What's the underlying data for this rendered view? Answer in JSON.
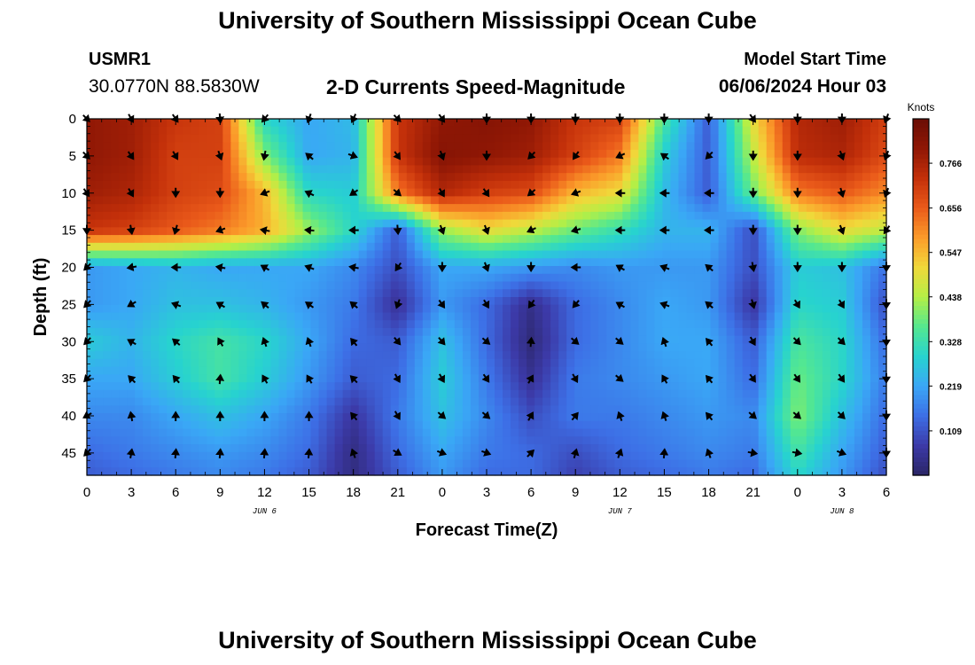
{
  "header": {
    "title": "University of Southern Mississippi Ocean Cube",
    "station_id": "USMR1",
    "station_coords": "30.0770N  88.5830W",
    "subtitle": "2-D Currents Speed-Magnitude",
    "model_start_label": "Model Start Time",
    "model_start_value": "06/06/2024 Hour 03"
  },
  "footer": {
    "title": "University of Southern Mississippi Ocean Cube"
  },
  "chart_data": {
    "type": "heatmap",
    "title": "2-D Currents Speed-Magnitude",
    "xlabel": "Forecast Time(Z)",
    "ylabel": "Depth (ft)",
    "xlim": [
      0,
      54
    ],
    "ylim": [
      48,
      0
    ],
    "x_tick_labels": [
      "0",
      "3",
      "6",
      "9",
      "12",
      "15",
      "18",
      "21",
      "0",
      "3",
      "6",
      "9",
      "12",
      "15",
      "18",
      "21",
      "0",
      "3",
      "6"
    ],
    "x_ticks_hours": [
      0,
      3,
      6,
      9,
      12,
      15,
      18,
      21,
      24,
      27,
      30,
      33,
      36,
      39,
      42,
      45,
      48,
      51,
      54
    ],
    "date_labels": [
      {
        "label": "JUN 6",
        "hour": 12
      },
      {
        "label": "JUN 7",
        "hour": 36
      },
      {
        "label": "JUN 8",
        "hour": 51
      }
    ],
    "y_ticks": [
      0,
      5,
      10,
      15,
      20,
      25,
      30,
      35,
      40,
      45
    ],
    "colorbar": {
      "label": "Knots",
      "range": [
        0.0,
        0.875
      ],
      "ticks": [
        0.109,
        0.219,
        0.328,
        0.438,
        0.547,
        0.656,
        0.766
      ],
      "colors": [
        "#2b2566",
        "#3c3aa8",
        "#3d6fe6",
        "#3aa7f6",
        "#27d3cf",
        "#55e88f",
        "#b4ef46",
        "#f1d83a",
        "#fb9b2a",
        "#ea5a1a",
        "#c3300a",
        "#8f1705",
        "#6a0d05"
      ]
    },
    "speed_knots_rows": {
      "depths_ft": [
        0,
        5,
        10,
        15,
        20,
        25,
        30,
        35,
        40,
        45,
        48
      ],
      "hours": [
        0,
        3,
        6,
        9,
        12,
        15,
        18,
        21,
        24,
        27,
        30,
        33,
        36,
        39,
        42,
        45,
        48,
        51,
        54
      ],
      "values": [
        [
          0.8,
          0.78,
          0.72,
          0.7,
          0.3,
          0.22,
          0.25,
          0.72,
          0.8,
          0.82,
          0.8,
          0.72,
          0.7,
          0.35,
          0.12,
          0.5,
          0.75,
          0.78,
          0.7
        ],
        [
          0.8,
          0.78,
          0.7,
          0.7,
          0.4,
          0.22,
          0.24,
          0.72,
          0.82,
          0.8,
          0.78,
          0.7,
          0.62,
          0.28,
          0.12,
          0.45,
          0.74,
          0.76,
          0.68
        ],
        [
          0.78,
          0.76,
          0.7,
          0.68,
          0.55,
          0.3,
          0.28,
          0.62,
          0.75,
          0.7,
          0.68,
          0.55,
          0.5,
          0.25,
          0.12,
          0.38,
          0.62,
          0.66,
          0.6
        ],
        [
          0.72,
          0.7,
          0.66,
          0.62,
          0.56,
          0.42,
          0.3,
          0.12,
          0.42,
          0.5,
          0.45,
          0.38,
          0.32,
          0.24,
          0.24,
          0.1,
          0.4,
          0.5,
          0.45
        ],
        [
          0.2,
          0.22,
          0.24,
          0.22,
          0.22,
          0.22,
          0.18,
          0.1,
          0.22,
          0.22,
          0.2,
          0.18,
          0.2,
          0.2,
          0.2,
          0.1,
          0.28,
          0.26,
          0.15
        ],
        [
          0.2,
          0.22,
          0.26,
          0.26,
          0.24,
          0.2,
          0.16,
          0.05,
          0.2,
          0.14,
          0.04,
          0.14,
          0.18,
          0.22,
          0.2,
          0.06,
          0.3,
          0.28,
          0.1
        ],
        [
          0.28,
          0.24,
          0.3,
          0.34,
          0.3,
          0.22,
          0.14,
          0.12,
          0.26,
          0.14,
          0.02,
          0.14,
          0.18,
          0.22,
          0.22,
          0.12,
          0.35,
          0.3,
          0.14
        ],
        [
          0.22,
          0.22,
          0.28,
          0.34,
          0.28,
          0.2,
          0.12,
          0.14,
          0.28,
          0.16,
          0.05,
          0.16,
          0.18,
          0.2,
          0.22,
          0.14,
          0.38,
          0.3,
          0.16
        ],
        [
          0.18,
          0.18,
          0.22,
          0.26,
          0.22,
          0.16,
          0.06,
          0.16,
          0.26,
          0.18,
          0.1,
          0.16,
          0.16,
          0.18,
          0.2,
          0.18,
          0.4,
          0.26,
          0.14
        ],
        [
          0.14,
          0.16,
          0.18,
          0.2,
          0.18,
          0.14,
          0.03,
          0.14,
          0.22,
          0.16,
          0.14,
          0.1,
          0.14,
          0.16,
          0.18,
          0.16,
          0.34,
          0.22,
          0.12
        ],
        [
          0.12,
          0.14,
          0.16,
          0.18,
          0.16,
          0.12,
          0.03,
          0.12,
          0.2,
          0.14,
          0.14,
          0.08,
          0.12,
          0.14,
          0.16,
          0.14,
          0.3,
          0.2,
          0.1
        ]
      ]
    },
    "direction_deg_rows": {
      "note": "arrow heading in screen degrees clockwise from up (0=up,180=down)",
      "depths_ft": [
        0,
        5,
        10,
        15,
        20,
        25,
        30,
        35,
        40,
        45
      ],
      "hours": [
        0,
        3,
        6,
        9,
        12,
        15,
        18,
        21,
        24,
        27,
        30,
        33,
        36,
        39,
        42,
        45,
        48,
        51,
        54
      ],
      "values": [
        [
          135,
          150,
          145,
          175,
          220,
          200,
          205,
          135,
          145,
          180,
          180,
          180,
          180,
          180,
          180,
          145,
          180,
          180,
          200
        ],
        [
          135,
          145,
          150,
          160,
          190,
          310,
          110,
          145,
          160,
          180,
          225,
          215,
          245,
          305,
          225,
          180,
          180,
          160,
          200
        ],
        [
          145,
          150,
          180,
          180,
          250,
          295,
          235,
          130,
          150,
          145,
          230,
          250,
          270,
          270,
          270,
          180,
          180,
          165,
          200
        ],
        [
          180,
          170,
          195,
          250,
          280,
          275,
          270,
          175,
          160,
          160,
          245,
          255,
          270,
          270,
          270,
          180,
          180,
          160,
          215
        ],
        [
          225,
          260,
          270,
          280,
          300,
          290,
          280,
          215,
          180,
          160,
          180,
          270,
          300,
          290,
          310,
          170,
          180,
          180,
          180
        ],
        [
          225,
          240,
          290,
          300,
          310,
          305,
          310,
          200,
          145,
          150,
          215,
          220,
          300,
          290,
          310,
          165,
          150,
          150,
          180
        ],
        [
          225,
          300,
          310,
          330,
          340,
          340,
          320,
          140,
          140,
          130,
          5,
          130,
          130,
          340,
          320,
          150,
          135,
          135,
          180
        ],
        [
          225,
          315,
          320,
          5,
          330,
          330,
          315,
          150,
          150,
          145,
          30,
          150,
          130,
          330,
          320,
          145,
          145,
          145,
          180
        ],
        [
          240,
          350,
          0,
          0,
          0,
          0,
          320,
          150,
          130,
          130,
          30,
          40,
          340,
          340,
          320,
          130,
          130,
          135,
          180
        ],
        [
          225,
          10,
          5,
          5,
          5,
          5,
          340,
          120,
          110,
          110,
          45,
          15,
          20,
          5,
          340,
          100,
          100,
          110,
          180
        ]
      ]
    }
  }
}
